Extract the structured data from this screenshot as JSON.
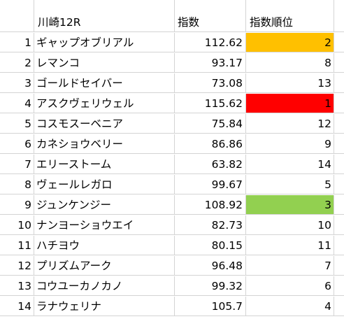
{
  "sheet": {
    "header": {
      "race": "川崎12R",
      "index": "指数",
      "rank": "指数順位"
    },
    "rows": [
      {
        "no": "1",
        "name": "ギャップオブリアル",
        "index": "112.62",
        "rank": "2",
        "highlight": "#ffc000"
      },
      {
        "no": "2",
        "name": "レマンコ",
        "index": "93.17",
        "rank": "8",
        "highlight": ""
      },
      {
        "no": "3",
        "name": "ゴールドセイバー",
        "index": "73.08",
        "rank": "13",
        "highlight": ""
      },
      {
        "no": "4",
        "name": "アスクヴェリウェル",
        "index": "115.62",
        "rank": "1",
        "highlight": "#ff0000"
      },
      {
        "no": "5",
        "name": "コスモスーベニア",
        "index": "75.84",
        "rank": "12",
        "highlight": ""
      },
      {
        "no": "6",
        "name": "カネショウベリー",
        "index": "86.86",
        "rank": "9",
        "highlight": ""
      },
      {
        "no": "7",
        "name": "エリーストーム",
        "index": "63.82",
        "rank": "14",
        "highlight": ""
      },
      {
        "no": "8",
        "name": "ヴェールレガロ",
        "index": "99.67",
        "rank": "5",
        "highlight": ""
      },
      {
        "no": "9",
        "name": "ジュンケンジー",
        "index": "108.92",
        "rank": "3",
        "highlight": "#92d050"
      },
      {
        "no": "10",
        "name": "ナンヨーショウエイ",
        "index": "82.73",
        "rank": "10",
        "highlight": ""
      },
      {
        "no": "11",
        "name": "ハチヨウ",
        "index": "80.15",
        "rank": "11",
        "highlight": ""
      },
      {
        "no": "12",
        "name": "プリズムアーク",
        "index": "96.48",
        "rank": "7",
        "highlight": ""
      },
      {
        "no": "13",
        "name": "コウユーカノカノ",
        "index": "99.32",
        "rank": "6",
        "highlight": ""
      },
      {
        "no": "14",
        "name": "ラナウェリナ",
        "index": "105.7",
        "rank": "4",
        "highlight": ""
      }
    ]
  }
}
